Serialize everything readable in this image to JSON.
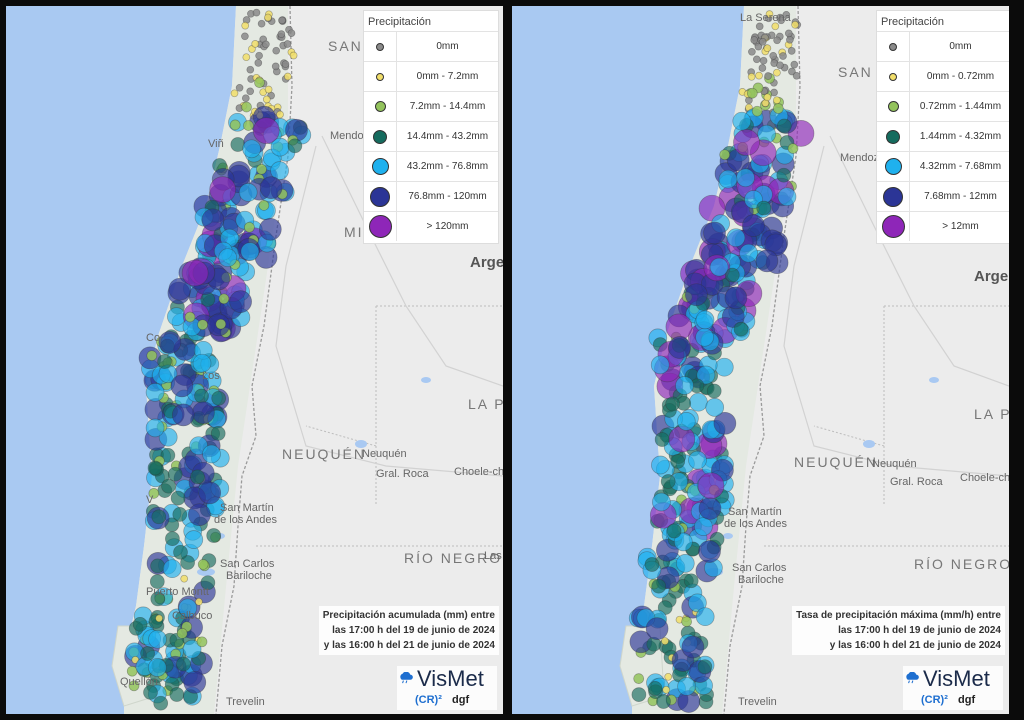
{
  "colors": {
    "ocean": "#a9c9f2",
    "land": "#ececec",
    "chile_land": "#e4e9e2",
    "border": "#9a9a9a",
    "cat0": "#8a8a8a",
    "cat1": "#f1de6a",
    "cat2": "#93c35c",
    "cat3": "#156b5e",
    "cat4": "#1fb1ee",
    "cat5": "#2b3596",
    "cat6": "#8e26b8"
  },
  "left": {
    "legend": {
      "title": "Precipitación",
      "items": [
        {
          "label": "0mm",
          "color": "#8a8a8a",
          "size": 6
        },
        {
          "label": "0mm - 7.2mm",
          "color": "#f1de6a",
          "size": 6
        },
        {
          "label": "7.2mm - 14.4mm",
          "color": "#93c35c",
          "size": 9
        },
        {
          "label": "14.4mm - 43.2mm",
          "color": "#156b5e",
          "size": 12
        },
        {
          "label": "43.2mm - 76.8mm",
          "color": "#1fb1ee",
          "size": 15
        },
        {
          "label": "76.8mm - 120mm",
          "color": "#2b3596",
          "size": 18
        },
        {
          "label": "> 120mm",
          "color": "#8e26b8",
          "size": 21
        }
      ]
    },
    "caption": {
      "line1": "Precipitación acumulada (mm) entre",
      "line2": "las 17:00 h del 19 de junio de 2024",
      "line3": "y las 16:00 h del 21 de junio de 2024"
    },
    "map_labels": {
      "san": "SAN",
      "mendoza": "Mendo",
      "vina": "Viñ",
      "mi": "MI",
      "argentina": "Arge",
      "co": "Co",
      "los": "Los",
      "la_pampa": "LA PA",
      "neuquen_province": "NEUQUÉN",
      "neuquen": "Neuquén",
      "gral_roca": "Gral. Roca",
      "choele": "Choele-choe",
      "v": "V",
      "san_martin": "San Martín",
      "de_los_andes": "de los Andes",
      "rio_negro": "RÍO NEGRO",
      "las": "Las",
      "san_carlos": "San Carlos",
      "bariloche": "Bariloche",
      "puerto_montt": "Puerto Montt",
      "calbuco": "Calbuco",
      "quellon": "Quellón",
      "trevelin": "Trevelin"
    }
  },
  "right": {
    "legend": {
      "title": "Precipitación",
      "items": [
        {
          "label": "0mm",
          "color": "#8a8a8a",
          "size": 6
        },
        {
          "label": "0mm - 0.72mm",
          "color": "#f1de6a",
          "size": 6
        },
        {
          "label": "0.72mm - 1.44mm",
          "color": "#93c35c",
          "size": 9
        },
        {
          "label": "1.44mm - 4.32mm",
          "color": "#156b5e",
          "size": 12
        },
        {
          "label": "4.32mm - 7.68mm",
          "color": "#1fb1ee",
          "size": 15
        },
        {
          "label": "7.68mm - 12mm",
          "color": "#2b3596",
          "size": 18
        },
        {
          "label": "> 12mm",
          "color": "#8e26b8",
          "size": 21
        }
      ]
    },
    "caption": {
      "line1": "Tasa de precipitación máxima (mm/h) entre",
      "line2": "las 17:00 h del 19 de junio de 2024",
      "line3": "y las 16:00 h del 21 de junio de 2024"
    },
    "map_labels": {
      "la_serena": "La Serena",
      "san": "SAN",
      "mendoza": "Mendoz",
      "argentina": "Argent",
      "la_pampa": "LA PA",
      "neuquen_province": "NEUQUÉN",
      "neuquen": "Neuquén",
      "gral_roca": "Gral. Roca",
      "choele": "Choele-choel",
      "san_martin": "San Martín",
      "de_los_andes": "de los Andes",
      "rio_negro": "RÍO NEGRO",
      "san_carlos": "San Carlos",
      "bariloche": "Bariloche",
      "trevelin": "Trevelin"
    }
  },
  "brand": {
    "name": "VisMet",
    "cr": "(CR)²",
    "dgf": "dgf"
  }
}
